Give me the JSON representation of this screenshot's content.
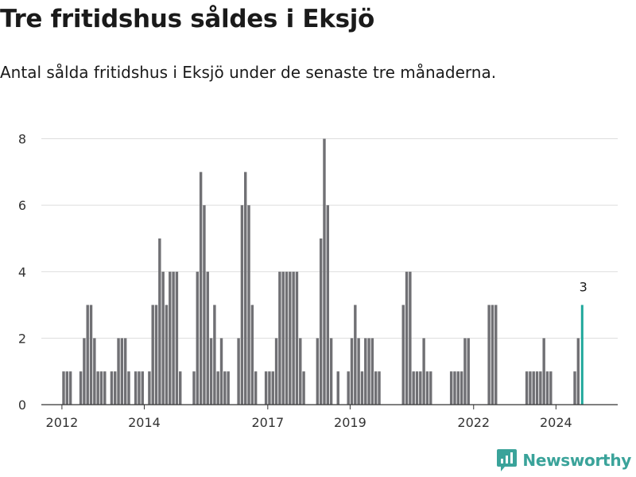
{
  "title": "Tre fritidshus såldes i Eksjö",
  "subtitle": "Antal sålda fritidshus i Eksjö under de senaste tre månaderna.",
  "brand": {
    "name": "Newsworthy",
    "icon": "newsworthy-logo-icon",
    "color": "#3aa39a"
  },
  "colors": {
    "bar": "#707074",
    "highlight": "#1fa79b",
    "grid": "#dddddd",
    "axis": "#333333"
  },
  "chart_data": {
    "type": "bar",
    "x_start": "2011-07",
    "x_end": "2025-06",
    "x_interval": "month",
    "x_ticks": [
      "2012",
      "2014",
      "2017",
      "2019",
      "2022",
      "2024"
    ],
    "y_ticks": [
      "0",
      "2",
      "4",
      "6",
      "8"
    ],
    "ylim": [
      0,
      8.3
    ],
    "grid": true,
    "highlight": {
      "date": "2024-08",
      "label": "3"
    },
    "values": [
      {
        "date": "2012-01",
        "value": 1
      },
      {
        "date": "2012-02",
        "value": 1
      },
      {
        "date": "2012-03",
        "value": 1
      },
      {
        "date": "2012-06",
        "value": 1
      },
      {
        "date": "2012-07",
        "value": 2
      },
      {
        "date": "2012-08",
        "value": 3
      },
      {
        "date": "2012-09",
        "value": 3
      },
      {
        "date": "2012-10",
        "value": 2
      },
      {
        "date": "2012-11",
        "value": 1
      },
      {
        "date": "2012-12",
        "value": 1
      },
      {
        "date": "2013-01",
        "value": 1
      },
      {
        "date": "2013-03",
        "value": 1
      },
      {
        "date": "2013-04",
        "value": 1
      },
      {
        "date": "2013-05",
        "value": 2
      },
      {
        "date": "2013-06",
        "value": 2
      },
      {
        "date": "2013-07",
        "value": 2
      },
      {
        "date": "2013-08",
        "value": 1
      },
      {
        "date": "2013-10",
        "value": 1
      },
      {
        "date": "2013-11",
        "value": 1
      },
      {
        "date": "2013-12",
        "value": 1
      },
      {
        "date": "2014-02",
        "value": 1
      },
      {
        "date": "2014-03",
        "value": 3
      },
      {
        "date": "2014-04",
        "value": 3
      },
      {
        "date": "2014-05",
        "value": 5
      },
      {
        "date": "2014-06",
        "value": 4
      },
      {
        "date": "2014-07",
        "value": 3
      },
      {
        "date": "2014-08",
        "value": 4
      },
      {
        "date": "2014-09",
        "value": 4
      },
      {
        "date": "2014-10",
        "value": 4
      },
      {
        "date": "2014-11",
        "value": 1
      },
      {
        "date": "2015-03",
        "value": 1
      },
      {
        "date": "2015-04",
        "value": 4
      },
      {
        "date": "2015-05",
        "value": 7
      },
      {
        "date": "2015-06",
        "value": 6
      },
      {
        "date": "2015-07",
        "value": 4
      },
      {
        "date": "2015-08",
        "value": 2
      },
      {
        "date": "2015-09",
        "value": 3
      },
      {
        "date": "2015-10",
        "value": 1
      },
      {
        "date": "2015-11",
        "value": 2
      },
      {
        "date": "2015-12",
        "value": 1
      },
      {
        "date": "2016-01",
        "value": 1
      },
      {
        "date": "2016-04",
        "value": 2
      },
      {
        "date": "2016-05",
        "value": 6
      },
      {
        "date": "2016-06",
        "value": 7
      },
      {
        "date": "2016-07",
        "value": 6
      },
      {
        "date": "2016-08",
        "value": 3
      },
      {
        "date": "2016-09",
        "value": 1
      },
      {
        "date": "2016-12",
        "value": 1
      },
      {
        "date": "2017-01",
        "value": 1
      },
      {
        "date": "2017-02",
        "value": 1
      },
      {
        "date": "2017-03",
        "value": 2
      },
      {
        "date": "2017-04",
        "value": 4
      },
      {
        "date": "2017-05",
        "value": 4
      },
      {
        "date": "2017-06",
        "value": 4
      },
      {
        "date": "2017-07",
        "value": 4
      },
      {
        "date": "2017-08",
        "value": 4
      },
      {
        "date": "2017-09",
        "value": 4
      },
      {
        "date": "2017-10",
        "value": 2
      },
      {
        "date": "2017-11",
        "value": 1
      },
      {
        "date": "2018-03",
        "value": 2
      },
      {
        "date": "2018-04",
        "value": 5
      },
      {
        "date": "2018-05",
        "value": 8
      },
      {
        "date": "2018-06",
        "value": 6
      },
      {
        "date": "2018-07",
        "value": 2
      },
      {
        "date": "2018-09",
        "value": 1
      },
      {
        "date": "2018-12",
        "value": 1
      },
      {
        "date": "2019-01",
        "value": 2
      },
      {
        "date": "2019-02",
        "value": 3
      },
      {
        "date": "2019-03",
        "value": 2
      },
      {
        "date": "2019-04",
        "value": 1
      },
      {
        "date": "2019-05",
        "value": 2
      },
      {
        "date": "2019-06",
        "value": 2
      },
      {
        "date": "2019-07",
        "value": 2
      },
      {
        "date": "2019-08",
        "value": 1
      },
      {
        "date": "2019-09",
        "value": 1
      },
      {
        "date": "2020-04",
        "value": 3
      },
      {
        "date": "2020-05",
        "value": 4
      },
      {
        "date": "2020-06",
        "value": 4
      },
      {
        "date": "2020-07",
        "value": 1
      },
      {
        "date": "2020-08",
        "value": 1
      },
      {
        "date": "2020-09",
        "value": 1
      },
      {
        "date": "2020-10",
        "value": 2
      },
      {
        "date": "2020-11",
        "value": 1
      },
      {
        "date": "2020-12",
        "value": 1
      },
      {
        "date": "2021-06",
        "value": 1
      },
      {
        "date": "2021-07",
        "value": 1
      },
      {
        "date": "2021-08",
        "value": 1
      },
      {
        "date": "2021-09",
        "value": 1
      },
      {
        "date": "2021-10",
        "value": 2
      },
      {
        "date": "2021-11",
        "value": 2
      },
      {
        "date": "2022-05",
        "value": 3
      },
      {
        "date": "2022-06",
        "value": 3
      },
      {
        "date": "2022-07",
        "value": 3
      },
      {
        "date": "2023-04",
        "value": 1
      },
      {
        "date": "2023-05",
        "value": 1
      },
      {
        "date": "2023-06",
        "value": 1
      },
      {
        "date": "2023-07",
        "value": 1
      },
      {
        "date": "2023-08",
        "value": 1
      },
      {
        "date": "2023-09",
        "value": 2
      },
      {
        "date": "2023-10",
        "value": 1
      },
      {
        "date": "2023-11",
        "value": 1
      },
      {
        "date": "2024-06",
        "value": 1
      },
      {
        "date": "2024-07",
        "value": 2
      },
      {
        "date": "2024-08",
        "value": 3
      }
    ]
  }
}
